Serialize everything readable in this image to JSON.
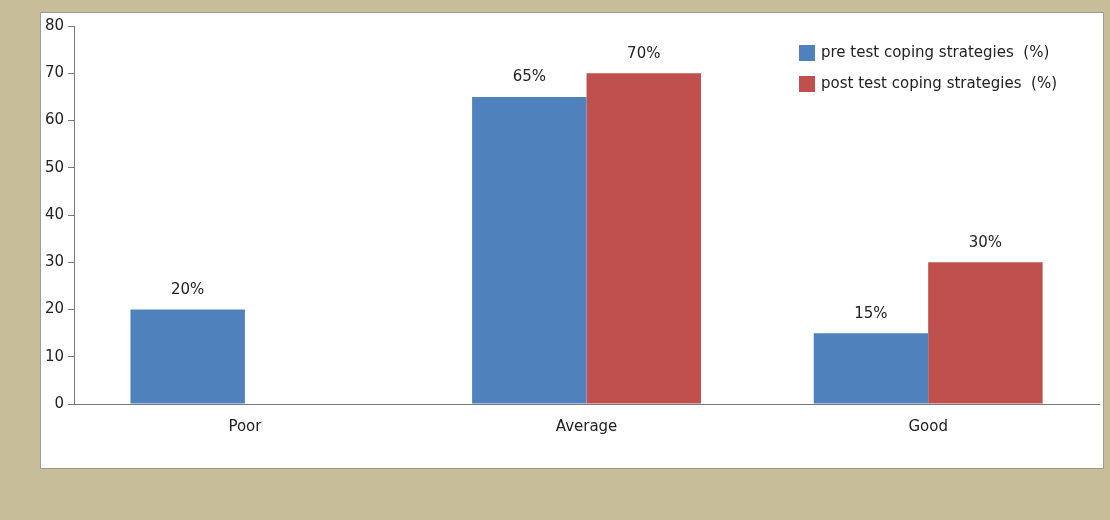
{
  "chart_data": {
    "type": "bar",
    "categories": [
      "Poor",
      "Average",
      "Good"
    ],
    "series": [
      {
        "name": "pre test coping strategies  (%)",
        "color": "#4f81bd",
        "values": [
          20,
          65,
          15
        ],
        "value_labels": [
          "20%",
          "65%",
          "15%"
        ]
      },
      {
        "name": "post test coping strategies  (%)",
        "color": "#c0504d",
        "values": [
          0,
          70,
          30
        ],
        "value_labels": [
          null,
          "70%",
          "30%"
        ]
      }
    ],
    "ylim": [
      0,
      80
    ],
    "yticks": [
      0,
      10,
      20,
      30,
      40,
      50,
      60,
      70,
      80
    ],
    "grid": false,
    "legend": "top right"
  }
}
